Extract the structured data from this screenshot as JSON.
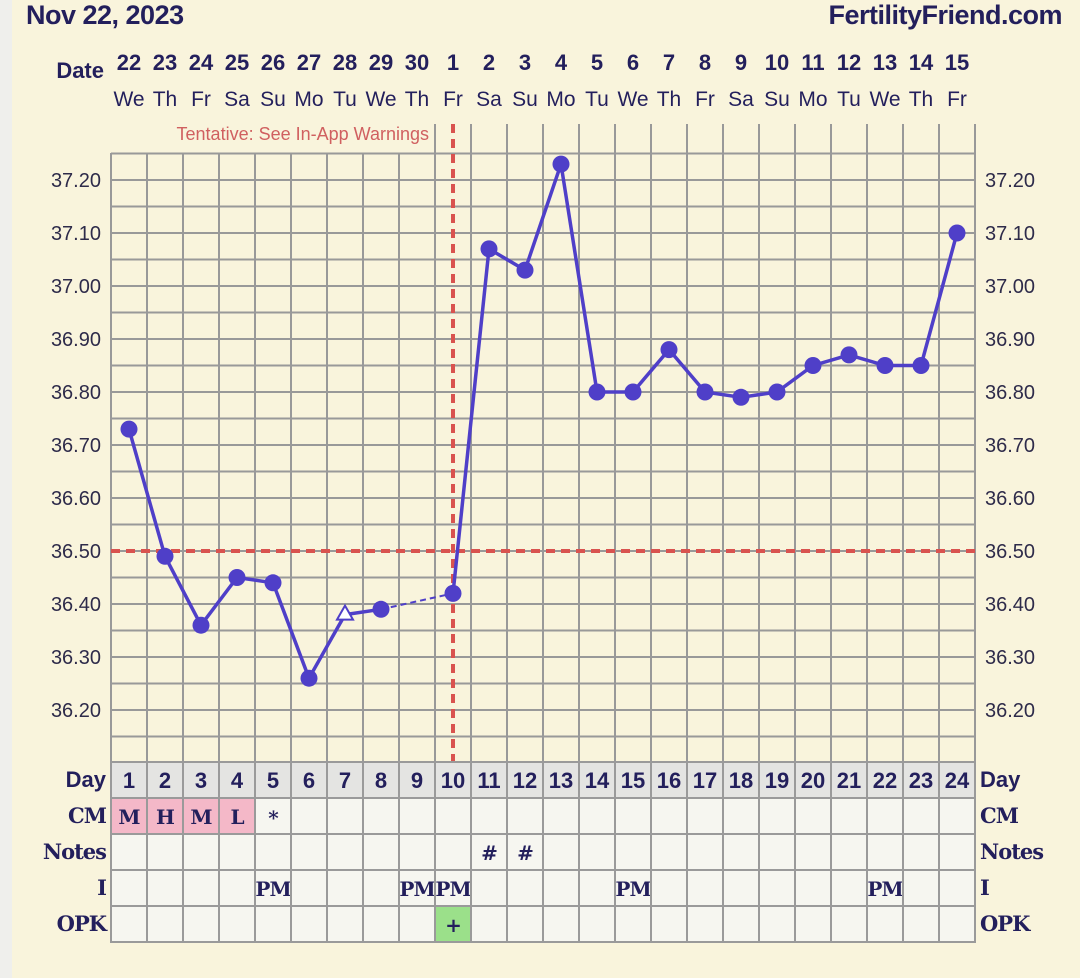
{
  "header": {
    "title": "Nov 22, 2023",
    "brand": "FertilityFriend.com"
  },
  "warning": "Tentative: See In-App Warnings",
  "labels": {
    "date": "Date",
    "day": "Day",
    "cm": "CM",
    "notes": "Notes",
    "i": "I",
    "opk": "OPK"
  },
  "colors": {
    "line": "#4f3fc8",
    "marker": "#4f3fc8",
    "coverline": "#d9534f",
    "text": "#231f5c",
    "background": "#f9f4dc",
    "grid": "#999999",
    "cm_cell": "#f4b8c8",
    "opk_positive": "#9be08a"
  },
  "chart_data": {
    "type": "line",
    "title": "",
    "xlabel": "Day",
    "ylabel": "",
    "ylim": [
      36.1,
      37.25
    ],
    "yticks": [
      "36.20",
      "36.30",
      "36.40",
      "36.50",
      "36.60",
      "36.70",
      "36.80",
      "36.90",
      "37.00",
      "37.10",
      "37.20"
    ],
    "grid": true,
    "days": [
      1,
      2,
      3,
      4,
      5,
      6,
      7,
      8,
      9,
      10,
      11,
      12,
      13,
      14,
      15,
      16,
      17,
      18,
      19,
      20,
      21,
      22,
      23,
      24
    ],
    "dates": [
      "22",
      "23",
      "24",
      "25",
      "26",
      "27",
      "28",
      "29",
      "30",
      "1",
      "2",
      "3",
      "4",
      "5",
      "6",
      "7",
      "8",
      "9",
      "10",
      "11",
      "12",
      "13",
      "14",
      "15"
    ],
    "weekdays": [
      "We",
      "Th",
      "Fr",
      "Sa",
      "Su",
      "Mo",
      "Tu",
      "We",
      "Th",
      "Fr",
      "Sa",
      "Su",
      "Mo",
      "Tu",
      "We",
      "Th",
      "Fr",
      "Sa",
      "Su",
      "Mo",
      "Tu",
      "We",
      "Th",
      "Fr"
    ],
    "temperatures": [
      36.73,
      36.49,
      36.36,
      36.45,
      36.44,
      36.26,
      36.38,
      36.39,
      null,
      36.42,
      37.07,
      37.03,
      37.23,
      36.8,
      36.8,
      36.88,
      36.8,
      36.79,
      36.8,
      36.85,
      36.87,
      36.85,
      36.85,
      37.1
    ],
    "open_marker_days": [
      7
    ],
    "dashed_segments": [
      [
        8,
        10
      ]
    ],
    "coverline": 36.5,
    "ovulation_day": 10
  },
  "table": {
    "cm": [
      "M",
      "H",
      "M",
      "L",
      "*",
      "",
      "",
      "",
      "",
      "",
      "",
      "",
      "",
      "",
      "",
      "",
      "",
      "",
      "",
      "",
      "",
      "",
      "",
      ""
    ],
    "cm_highlight": [
      1,
      2,
      3,
      4
    ],
    "notes": [
      "",
      "",
      "",
      "",
      "",
      "",
      "",
      "",
      "",
      "",
      "#",
      "#",
      "",
      "",
      "",
      "",
      "",
      "",
      "",
      "",
      "",
      "",
      "",
      ""
    ],
    "i": [
      "",
      "",
      "",
      "",
      "PM",
      "",
      "",
      "",
      "PM",
      "PM",
      "",
      "",
      "",
      "",
      "PM",
      "",
      "",
      "",
      "",
      "",
      "",
      "PM",
      "",
      ""
    ],
    "opk": [
      "",
      "",
      "",
      "",
      "",
      "",
      "",
      "",
      "",
      "+",
      "",
      "",
      "",
      "",
      "",
      "",
      "",
      "",
      "",
      "",
      "",
      "",
      "",
      ""
    ],
    "opk_positive_days": [
      10
    ]
  }
}
